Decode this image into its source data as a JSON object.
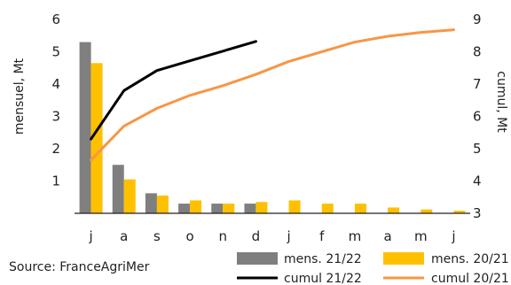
{
  "chart_data": {
    "type": "bar",
    "categories": [
      "j",
      "a",
      "s",
      "o",
      "n",
      "d",
      "j",
      "f",
      "m",
      "a",
      "m",
      "j"
    ],
    "ylabel_left": "mensuel, Mt",
    "ylabel_right": "cumul, Mt",
    "ylim_left": [
      0,
      6
    ],
    "yticks_left": [
      "1",
      "2",
      "3",
      "4",
      "5",
      "6"
    ],
    "ylim_right": [
      3,
      9
    ],
    "yticks_right": [
      "3",
      "4",
      "5",
      "6",
      "7",
      "8",
      "9"
    ],
    "grid": false,
    "legend_position": "bottom",
    "source": "Source: FranceAgriMer",
    "colors": {
      "mens_2122": "#7f7f7f",
      "mens_2021": "#ffc000",
      "cumul_2122": "#000000",
      "cumul_2021": "#f79646"
    },
    "series": [
      {
        "name": "mens. 21/22",
        "kind": "bar",
        "axis": "left",
        "values": [
          5.3,
          1.5,
          0.62,
          0.3,
          0.3,
          0.3,
          null,
          null,
          null,
          null,
          null,
          null
        ]
      },
      {
        "name": "mens. 20/21",
        "kind": "bar",
        "axis": "left",
        "values": [
          4.65,
          1.05,
          0.55,
          0.4,
          0.3,
          0.35,
          0.4,
          0.3,
          0.3,
          0.18,
          0.12,
          0.08
        ]
      },
      {
        "name": "cumul 21/22",
        "kind": "line",
        "axis": "right",
        "values": [
          5.3,
          6.8,
          7.42,
          7.72,
          8.02,
          8.32,
          null,
          null,
          null,
          null,
          null,
          null
        ]
      },
      {
        "name": "cumul 20/21",
        "kind": "line",
        "axis": "right",
        "values": [
          4.65,
          5.7,
          6.25,
          6.65,
          6.95,
          7.3,
          7.7,
          8.0,
          8.3,
          8.48,
          8.6,
          8.68
        ]
      }
    ]
  }
}
